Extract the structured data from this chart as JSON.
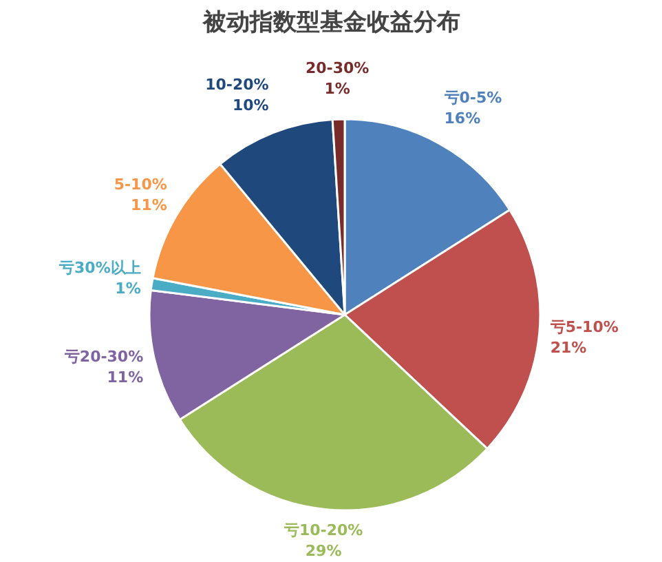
{
  "chart_data": {
    "type": "pie",
    "title": "被动指数型基金收益分布",
    "categories": [
      "亏0-5%",
      "亏5-10%",
      "亏10-20%",
      "亏20-30%",
      "亏30%以上",
      "5-10%",
      "10-20%",
      "20-30%"
    ],
    "values": [
      16,
      21,
      29,
      11,
      1,
      11,
      10,
      1
    ],
    "value_labels": [
      "16%",
      "21%",
      "29%",
      "11%",
      "1%",
      "11%",
      "10%",
      "1%"
    ],
    "colors": [
      "#4f81bd",
      "#c0504d",
      "#9bbb59",
      "#8064a2",
      "#4bacc6",
      "#f79646",
      "#1f497d",
      "#772c2a"
    ]
  }
}
